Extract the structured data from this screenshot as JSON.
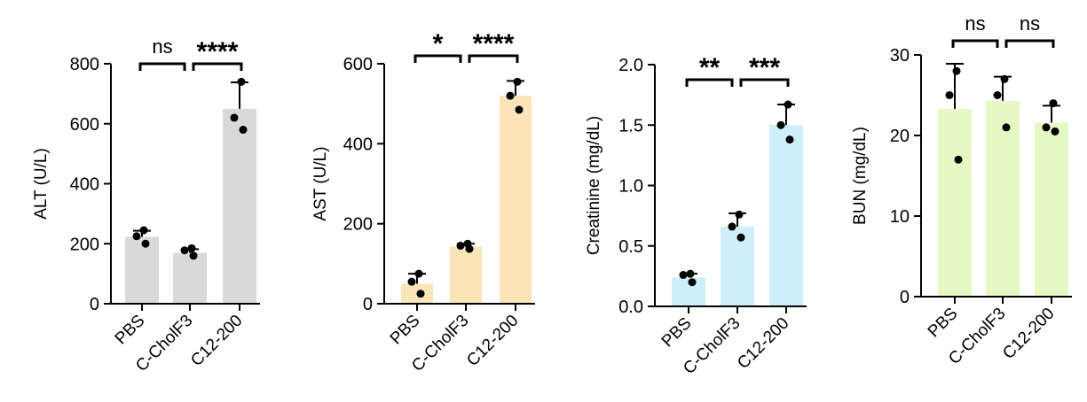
{
  "colors": {
    "axis": "#000000",
    "alt_bar": "#d9d9d9",
    "ast_bar": "#fbe4b8",
    "creatinine_bar": "#cdeefa",
    "bun_bar": "#e6f8c4"
  },
  "chart_data": [
    {
      "type": "bar",
      "ylabel": "ALT (U/L)",
      "categories": [
        "PBS",
        "C-CholF3",
        "C12-200"
      ],
      "values": [
        223,
        170,
        650
      ],
      "error": [
        20,
        12,
        88
      ],
      "points": [
        [
          245,
          225,
          200
        ],
        [
          185,
          178,
          160
        ],
        [
          740,
          620,
          580
        ]
      ],
      "ylim": [
        0,
        800
      ],
      "yticks": [
        0,
        200,
        400,
        600,
        800
      ],
      "ytick_labels": [
        "0",
        "200",
        "400",
        "600",
        "800"
      ],
      "significance": [
        {
          "from": 0,
          "to": 1,
          "label": "ns"
        },
        {
          "from": 1,
          "to": 2,
          "label": "****"
        }
      ],
      "color": "#d9d9d9"
    },
    {
      "type": "bar",
      "ylabel": "AST (U/L)",
      "categories": [
        "PBS",
        "C-CholF3",
        "C12-200"
      ],
      "values": [
        50,
        143,
        520
      ],
      "error": [
        25,
        7,
        37
      ],
      "points": [
        [
          75,
          55,
          25
        ],
        [
          150,
          145,
          137
        ],
        [
          555,
          520,
          485
        ]
      ],
      "ylim": [
        0,
        600
      ],
      "yticks": [
        0,
        200,
        400,
        600
      ],
      "ytick_labels": [
        "0",
        "200",
        "400",
        "600"
      ],
      "significance": [
        {
          "from": 0,
          "to": 1,
          "label": "*"
        },
        {
          "from": 1,
          "to": 2,
          "label": "****"
        }
      ],
      "color": "#fbe4b8"
    },
    {
      "type": "bar",
      "ylabel": "Creatinine (mg/dL)",
      "categories": [
        "PBS",
        "C-CholF3",
        "C12-200"
      ],
      "values": [
        0.24,
        0.66,
        1.5
      ],
      "error": [
        0.03,
        0.11,
        0.17
      ],
      "points": [
        [
          0.27,
          0.26,
          0.2
        ],
        [
          0.76,
          0.66,
          0.57
        ],
        [
          1.67,
          1.5,
          1.38
        ]
      ],
      "ylim": [
        0,
        2.0
      ],
      "yticks": [
        0,
        0.5,
        1.0,
        1.5,
        2.0
      ],
      "ytick_labels": [
        "0.0",
        "0.5",
        "1.0",
        "1.5",
        "2.0"
      ],
      "significance": [
        {
          "from": 0,
          "to": 1,
          "label": "**"
        },
        {
          "from": 1,
          "to": 2,
          "label": "***"
        }
      ],
      "color": "#cdeefa"
    },
    {
      "type": "bar",
      "ylabel": "BUN (mg/dL)",
      "categories": [
        "PBS",
        "C-CholF3",
        "C12-200"
      ],
      "values": [
        23.3,
        24.3,
        21.6
      ],
      "error": [
        5.6,
        3.0,
        2.1
      ],
      "points": [
        [
          28,
          25,
          17
        ],
        [
          27,
          25,
          21
        ],
        [
          24,
          21,
          20.5
        ]
      ],
      "ylim": [
        0,
        30
      ],
      "yticks": [
        0,
        10,
        20,
        30
      ],
      "ytick_labels": [
        "0",
        "10",
        "20",
        "30"
      ],
      "significance": [
        {
          "from": 0,
          "to": 1,
          "label": "ns"
        },
        {
          "from": 1,
          "to": 2,
          "label": "ns"
        }
      ],
      "color": "#e6f8c4"
    }
  ]
}
